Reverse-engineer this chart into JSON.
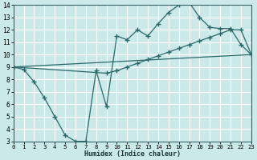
{
  "xlabel": "Humidex (Indice chaleur)",
  "xlim": [
    0,
    23
  ],
  "ylim": [
    3,
    14
  ],
  "xticks": [
    0,
    1,
    2,
    3,
    4,
    5,
    6,
    7,
    8,
    9,
    10,
    11,
    12,
    13,
    14,
    15,
    16,
    17,
    18,
    19,
    20,
    21,
    22,
    23
  ],
  "yticks": [
    3,
    4,
    5,
    6,
    7,
    8,
    9,
    10,
    11,
    12,
    13,
    14
  ],
  "bg_color": "#cce9e9",
  "grid_color": "#b0d4d4",
  "line_color": "#2a6868",
  "curve1_x": [
    0,
    1,
    2,
    3,
    4,
    5,
    6,
    7,
    8,
    9,
    10,
    11,
    12,
    13,
    14,
    15,
    16,
    17,
    18,
    19,
    20,
    21,
    22,
    23
  ],
  "curve1_y": [
    9.0,
    8.8,
    7.8,
    6.5,
    5.0,
    3.5,
    3.0,
    3.0,
    8.7,
    5.8,
    11.5,
    11.2,
    12.0,
    11.5,
    12.5,
    13.4,
    14.0,
    14.2,
    13.0,
    12.2,
    12.1,
    12.1,
    10.8,
    10.0
  ],
  "curve2_x": [
    0,
    9,
    10,
    11,
    12,
    13,
    14,
    15,
    16,
    17,
    18,
    19,
    20,
    21,
    22,
    23
  ],
  "curve2_y": [
    9.0,
    8.5,
    8.7,
    9.0,
    9.3,
    9.6,
    9.9,
    10.2,
    10.5,
    10.8,
    11.1,
    11.4,
    11.7,
    12.0,
    12.0,
    10.0
  ],
  "line_x": [
    0,
    23
  ],
  "line_y": [
    9.0,
    10.0
  ]
}
